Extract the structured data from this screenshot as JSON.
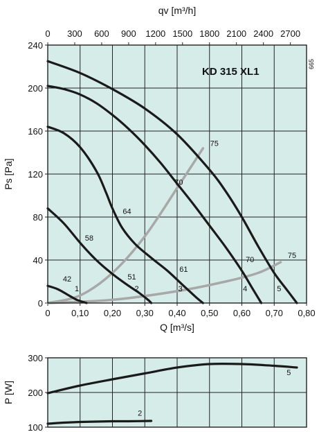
{
  "chart_data": [
    {
      "type": "line",
      "title": "KD 315 XL1",
      "code": "665",
      "top_axis_label": "qv [m³/h]",
      "top_ticks": [
        "0",
        "300",
        "600",
        "900",
        "1200",
        "1500",
        "1800",
        "2100",
        "2400",
        "2700"
      ],
      "xlabel": "Q [m³/s]",
      "ylabel": "Ps [Pa]",
      "xlim": [
        0,
        0.8
      ],
      "ylim": [
        0,
        240
      ],
      "x_ticks": [
        "0",
        "0,10",
        "0,20",
        "0,30",
        "0,40",
        "0,50",
        "0,60",
        "0,70",
        "0,80"
      ],
      "y_ticks": [
        "0",
        "40",
        "80",
        "120",
        "160",
        "200",
        "240"
      ],
      "grid": true,
      "background_color": "#d6ece8",
      "curve_color": "#1a1a1a",
      "efficiency_color": "#a8a8a8",
      "series": [
        {
          "name": "1",
          "x": [
            0,
            0.03,
            0.06,
            0.09,
            0.12
          ],
          "y": [
            16,
            13,
            8,
            3,
            0
          ]
        },
        {
          "name": "2",
          "x": [
            0,
            0.05,
            0.1,
            0.15,
            0.2,
            0.25,
            0.28,
            0.31,
            0.32
          ],
          "y": [
            88,
            74,
            56,
            40,
            27,
            16,
            10,
            3,
            0
          ]
        },
        {
          "name": "3",
          "x": [
            0,
            0.05,
            0.1,
            0.15,
            0.18,
            0.2,
            0.23,
            0.27,
            0.32,
            0.37,
            0.42,
            0.46,
            0.48
          ],
          "y": [
            164,
            158,
            145,
            123,
            103,
            88,
            70,
            55,
            42,
            30,
            16,
            5,
            0
          ]
        },
        {
          "name": "4",
          "x": [
            0,
            0.05,
            0.1,
            0.15,
            0.2,
            0.25,
            0.3,
            0.35,
            0.4,
            0.45,
            0.5,
            0.55,
            0.6,
            0.63,
            0.66
          ],
          "y": [
            202,
            199,
            194,
            186,
            175,
            162,
            147,
            130,
            111,
            92,
            72,
            52,
            30,
            15,
            0
          ]
        },
        {
          "name": "5",
          "x": [
            0,
            0.1,
            0.2,
            0.3,
            0.4,
            0.5,
            0.55,
            0.6,
            0.65,
            0.7,
            0.74,
            0.77
          ],
          "y": [
            225,
            214,
            199,
            181,
            157,
            124,
            104,
            80,
            53,
            28,
            12,
            0
          ]
        }
      ],
      "efficiency_lines": [
        {
          "x": [
            0,
            0.1,
            0.2,
            0.3,
            0.4,
            0.48
          ],
          "y": [
            0,
            7,
            28,
            62,
            107,
            144
          ]
        },
        {
          "x": [
            0,
            0.2,
            0.4,
            0.55,
            0.65,
            0.72
          ],
          "y": [
            0,
            3,
            11,
            20,
            28,
            38
          ]
        }
      ],
      "curve_labels": [
        {
          "text": "1",
          "x": 0.09,
          "y": 11
        },
        {
          "text": "2",
          "x": 0.275,
          "y": 11
        },
        {
          "text": "3",
          "x": 0.41,
          "y": 11
        },
        {
          "text": "4",
          "x": 0.61,
          "y": 11
        },
        {
          "text": "5",
          "x": 0.715,
          "y": 11
        }
      ],
      "efficiency_labels": [
        {
          "text": "42",
          "x": 0.06,
          "y": 20
        },
        {
          "text": "51",
          "x": 0.26,
          "y": 22
        },
        {
          "text": "61",
          "x": 0.42,
          "y": 29
        },
        {
          "text": "70",
          "x": 0.625,
          "y": 38
        },
        {
          "text": "58",
          "x": 0.128,
          "y": 58
        },
        {
          "text": "64",
          "x": 0.245,
          "y": 83
        },
        {
          "text": "70",
          "x": 0.405,
          "y": 110
        },
        {
          "text": "75",
          "x": 0.515,
          "y": 146
        },
        {
          "text": "75",
          "x": 0.755,
          "y": 42
        }
      ]
    },
    {
      "type": "line",
      "ylabel": "P [W]",
      "xlim": [
        0,
        0.8
      ],
      "ylim": [
        100,
        300
      ],
      "y_ticks": [
        "100",
        "200",
        "300"
      ],
      "grid": true,
      "series": [
        {
          "name": "5",
          "x": [
            0,
            0.1,
            0.2,
            0.3,
            0.4,
            0.5,
            0.6,
            0.7,
            0.77
          ],
          "y": [
            198,
            220,
            238,
            255,
            272,
            282,
            282,
            277,
            272
          ]
        },
        {
          "name": "2",
          "x": [
            0,
            0.05,
            0.1,
            0.15,
            0.2,
            0.25,
            0.32
          ],
          "y": [
            110,
            113,
            115,
            116,
            117,
            117,
            118
          ]
        }
      ],
      "curve_labels": [
        {
          "text": "5",
          "x": 0.745,
          "y": 250
        },
        {
          "text": "2",
          "x": 0.285,
          "y": 133
        }
      ]
    }
  ]
}
